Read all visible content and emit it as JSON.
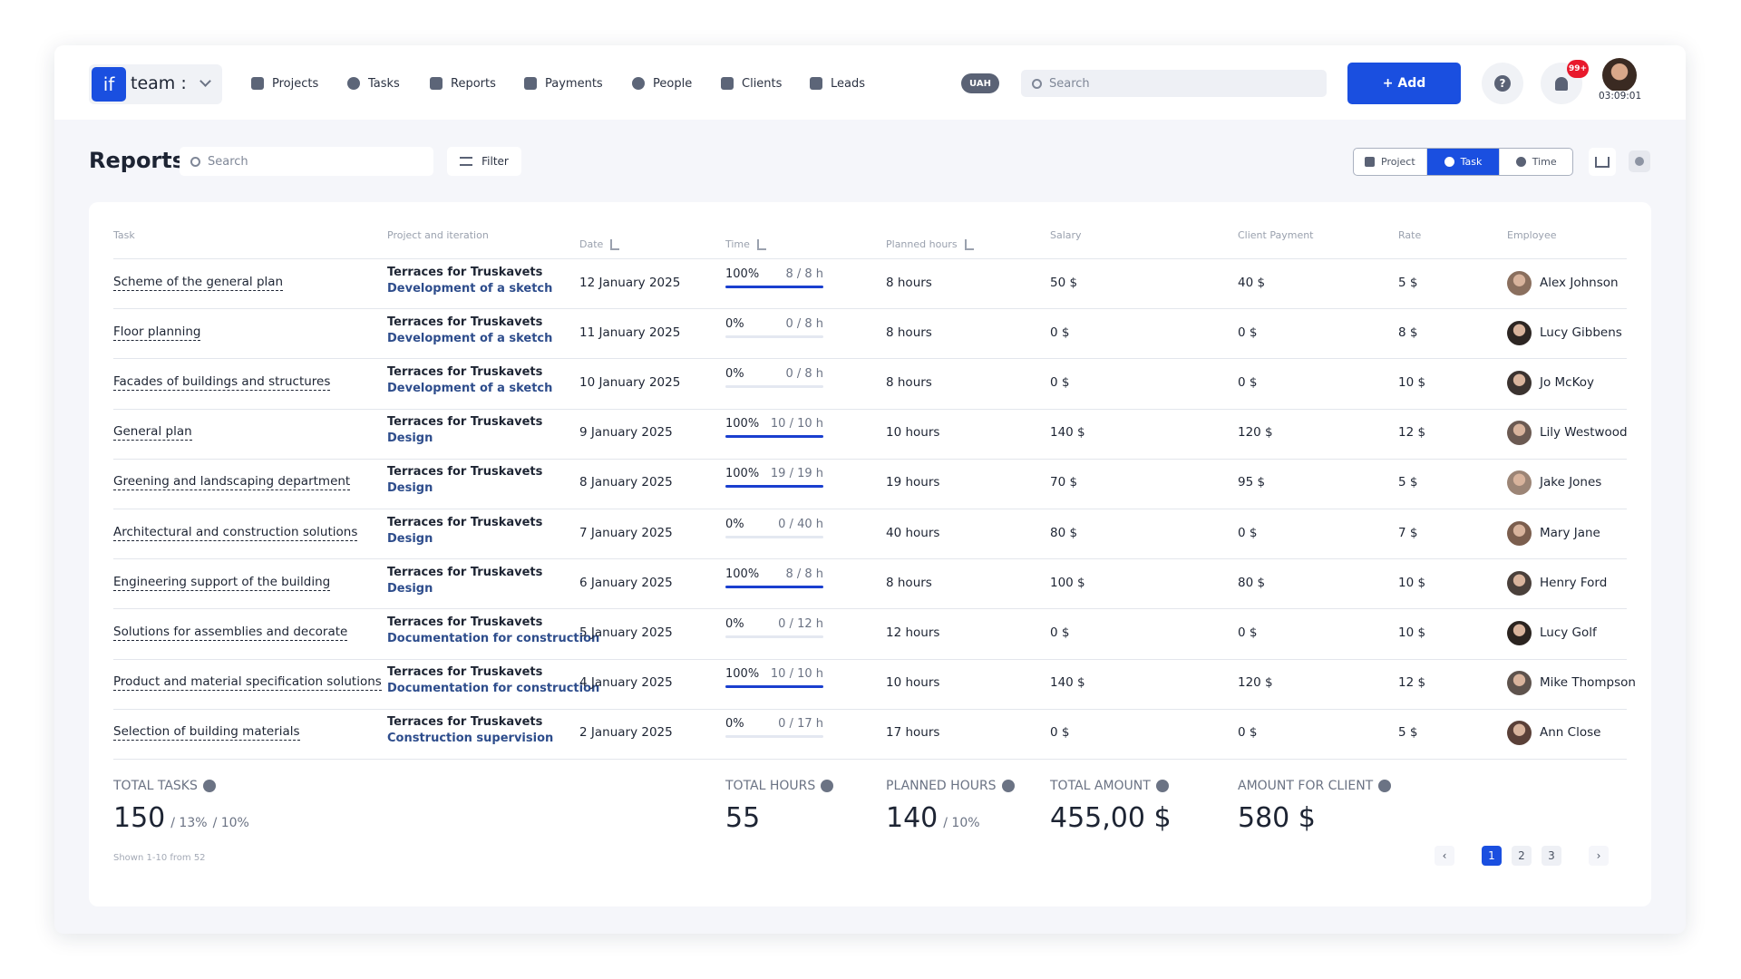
{
  "nav": {
    "logo_mark": "if",
    "logo": "team :",
    "items": [
      "Projects",
      "Tasks",
      "Reports",
      "Payments",
      "People",
      "Clients",
      "Leads"
    ],
    "currency": "UAH",
    "search": "Search",
    "add": "+ Add",
    "help": "?",
    "badge": "99+",
    "timer": "03:09:01"
  },
  "page": {
    "title": "Reports",
    "search": "Search",
    "filter": "Filter",
    "views": [
      "Project",
      "Task",
      "Time"
    ]
  },
  "table": {
    "columns": [
      "Task",
      "Project and iteration",
      "Date",
      "Time",
      "Planned hours",
      "Salary",
      "Client Payment",
      "Rate",
      "Employee"
    ],
    "rows": [
      [
        "Scheme of the general plan",
        "Terraces for Truskavets",
        "Development of a sketch",
        "12 January 2025",
        "100%",
        "8 / 8 h",
        "8 hours",
        "50 $",
        "40 $",
        "5 $",
        "Alex Johnson"
      ],
      [
        "Floor planning",
        "Terraces for Truskavets",
        "Development of a sketch",
        "11 January 2025",
        "0%",
        "0 / 8 h",
        "8 hours",
        "0 $",
        "0 $",
        "8 $",
        "Lucy Gibbens"
      ],
      [
        "Facades of buildings and structures",
        "Terraces for Truskavets",
        "Development of a sketch",
        "10 January 2025",
        "0%",
        "0 / 8 h",
        "8 hours",
        "0 $",
        "0 $",
        "10 $",
        "Jo McKoy"
      ],
      [
        "General plan",
        "Terraces for Truskavets",
        "Design",
        "9 January 2025",
        "100%",
        "10 / 10 h",
        "10 hours",
        "140 $",
        "120 $",
        "12 $",
        "Lily Westwood"
      ],
      [
        "Greening and landscaping department",
        "Terraces for Truskavets",
        "Design",
        "8 January 2025",
        "100%",
        "19 / 19 h",
        "19 hours",
        "70 $",
        "95 $",
        "5 $",
        "Jake Jones"
      ],
      [
        "Architectural and construction solutions",
        "Terraces for Truskavets",
        "Design",
        "7 January 2025",
        "0%",
        "0 / 40 h",
        "40 hours",
        "80 $",
        "0 $",
        "7 $",
        "Mary Jane"
      ],
      [
        "Engineering support of the building",
        "Terraces for Truskavets",
        "Design",
        "6 January 2025",
        "100%",
        "8 / 8 h",
        "8 hours",
        "100 $",
        "80 $",
        "10 $",
        "Henry Ford"
      ],
      [
        "Solutions for assemblies and  decorate",
        "Terraces for Truskavets",
        "Documentation for construction",
        "5 January 2025",
        "0%",
        "0 / 12 h",
        "12 hours",
        "0 $",
        "0 $",
        "10 $",
        "Lucy Golf"
      ],
      [
        "Product and material specification solutions",
        "Terraces for Truskavets",
        "Documentation for construction",
        "4 January 2025",
        "100%",
        "10 / 10 h",
        "10 hours",
        "140 $",
        "120 $",
        "12 $",
        "Mike Thompson"
      ],
      [
        "Selection of building materials",
        "Terraces for Truskavets",
        "Construction supervision",
        "2 January 2025",
        "0%",
        "0 / 17 h",
        "17 hours",
        "0 $",
        "0 $",
        "5 $",
        "Ann Close"
      ]
    ]
  },
  "totals": [
    {
      "label": "TOTAL TASKS",
      "value": "150",
      "parts": [
        "/ 13%",
        "/ 10%"
      ]
    },
    {
      "label": "TOTAL HOURS",
      "value": "55",
      "parts": []
    },
    {
      "label": "PLANNED HOURS",
      "value": "140",
      "parts": [
        "/ 10%"
      ]
    },
    {
      "label": "TOTAL AMOUNT",
      "value": "455,00 $",
      "parts": []
    },
    {
      "label": "AMOUNT FOR CLIENT",
      "value": "580 $",
      "parts": []
    }
  ],
  "shown": "Shown 1-10 from 52",
  "pagination": {
    "prev": "‹",
    "pages": [
      "1",
      "2",
      "3"
    ],
    "next": "›"
  }
}
